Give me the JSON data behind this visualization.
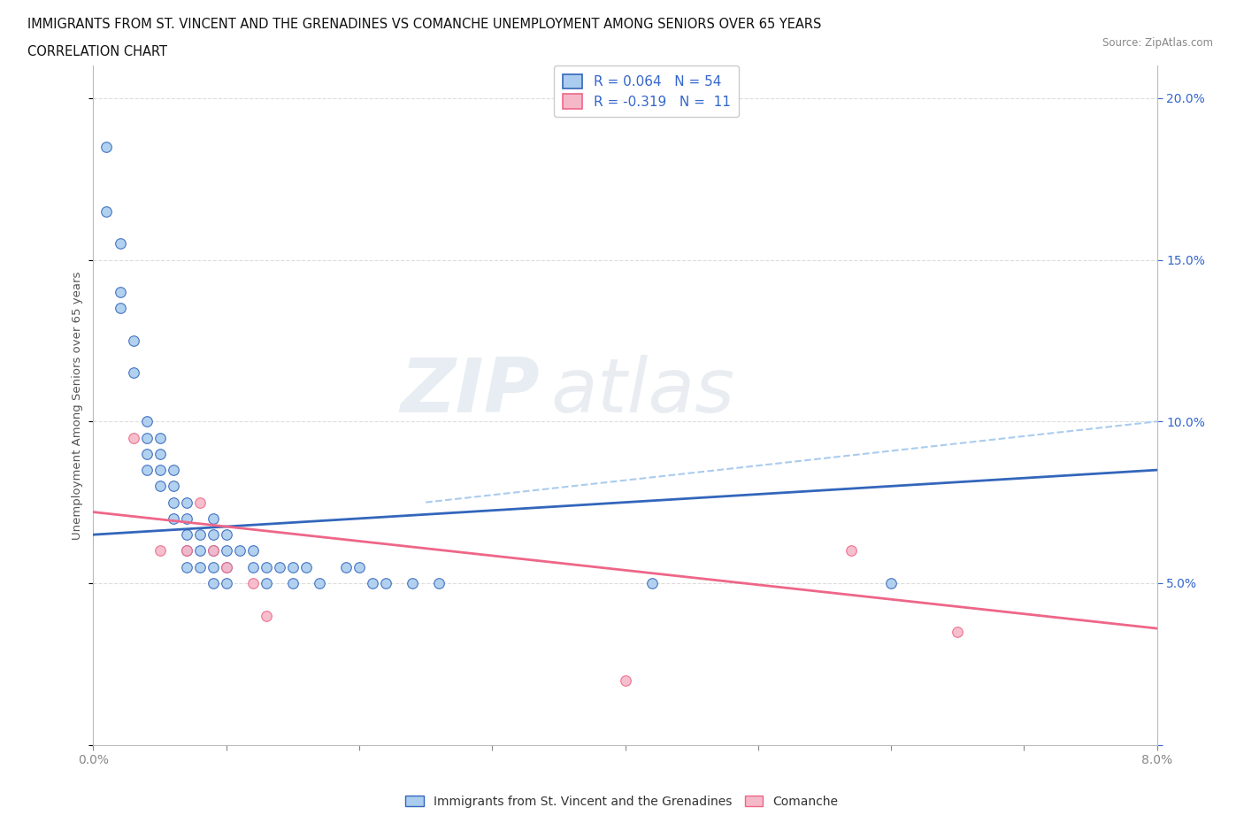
{
  "title_line1": "IMMIGRANTS FROM ST. VINCENT AND THE GRENADINES VS COMANCHE UNEMPLOYMENT AMONG SENIORS OVER 65 YEARS",
  "title_line2": "CORRELATION CHART",
  "source_text": "Source: ZipAtlas.com",
  "ylabel": "Unemployment Among Seniors over 65 years",
  "xlim": [
    0.0,
    0.08
  ],
  "ylim": [
    0.0,
    0.21
  ],
  "blue_R": "0.064",
  "blue_N": "54",
  "pink_R": "-0.319",
  "pink_N": "11",
  "blue_color": "#aaccee",
  "pink_color": "#f5b8c8",
  "blue_line_color": "#3366bb",
  "pink_line_color": "#ee6688",
  "legend_text_color": "#3366cc",
  "blue_scatter_x": [
    0.001,
    0.001,
    0.002,
    0.002,
    0.002,
    0.003,
    0.003,
    0.004,
    0.004,
    0.004,
    0.004,
    0.005,
    0.005,
    0.005,
    0.005,
    0.006,
    0.006,
    0.006,
    0.006,
    0.007,
    0.007,
    0.007,
    0.007,
    0.007,
    0.008,
    0.008,
    0.008,
    0.009,
    0.009,
    0.009,
    0.009,
    0.009,
    0.01,
    0.01,
    0.01,
    0.01,
    0.011,
    0.012,
    0.012,
    0.013,
    0.013,
    0.014,
    0.015,
    0.015,
    0.016,
    0.017,
    0.019,
    0.02,
    0.021,
    0.022,
    0.024,
    0.026,
    0.042,
    0.06
  ],
  "blue_scatter_y": [
    0.185,
    0.165,
    0.155,
    0.14,
    0.135,
    0.125,
    0.115,
    0.1,
    0.095,
    0.09,
    0.085,
    0.095,
    0.09,
    0.085,
    0.08,
    0.085,
    0.08,
    0.075,
    0.07,
    0.075,
    0.07,
    0.065,
    0.06,
    0.055,
    0.065,
    0.06,
    0.055,
    0.07,
    0.065,
    0.06,
    0.055,
    0.05,
    0.065,
    0.06,
    0.055,
    0.05,
    0.06,
    0.06,
    0.055,
    0.055,
    0.05,
    0.055,
    0.055,
    0.05,
    0.055,
    0.05,
    0.055,
    0.055,
    0.05,
    0.05,
    0.05,
    0.05,
    0.05,
    0.05
  ],
  "pink_scatter_x": [
    0.003,
    0.005,
    0.007,
    0.008,
    0.009,
    0.01,
    0.012,
    0.013,
    0.04,
    0.057,
    0.065
  ],
  "pink_scatter_y": [
    0.095,
    0.06,
    0.06,
    0.075,
    0.06,
    0.055,
    0.05,
    0.04,
    0.02,
    0.06,
    0.035
  ],
  "blue_trend": [
    0.0,
    0.08,
    0.065,
    0.085
  ],
  "pink_trend": [
    0.0,
    0.08,
    0.072,
    0.036
  ],
  "blue_dashed_trend": [
    0.025,
    0.08,
    0.075,
    0.1
  ],
  "grid_color": "#dddddd",
  "bg_color": "#ffffff"
}
